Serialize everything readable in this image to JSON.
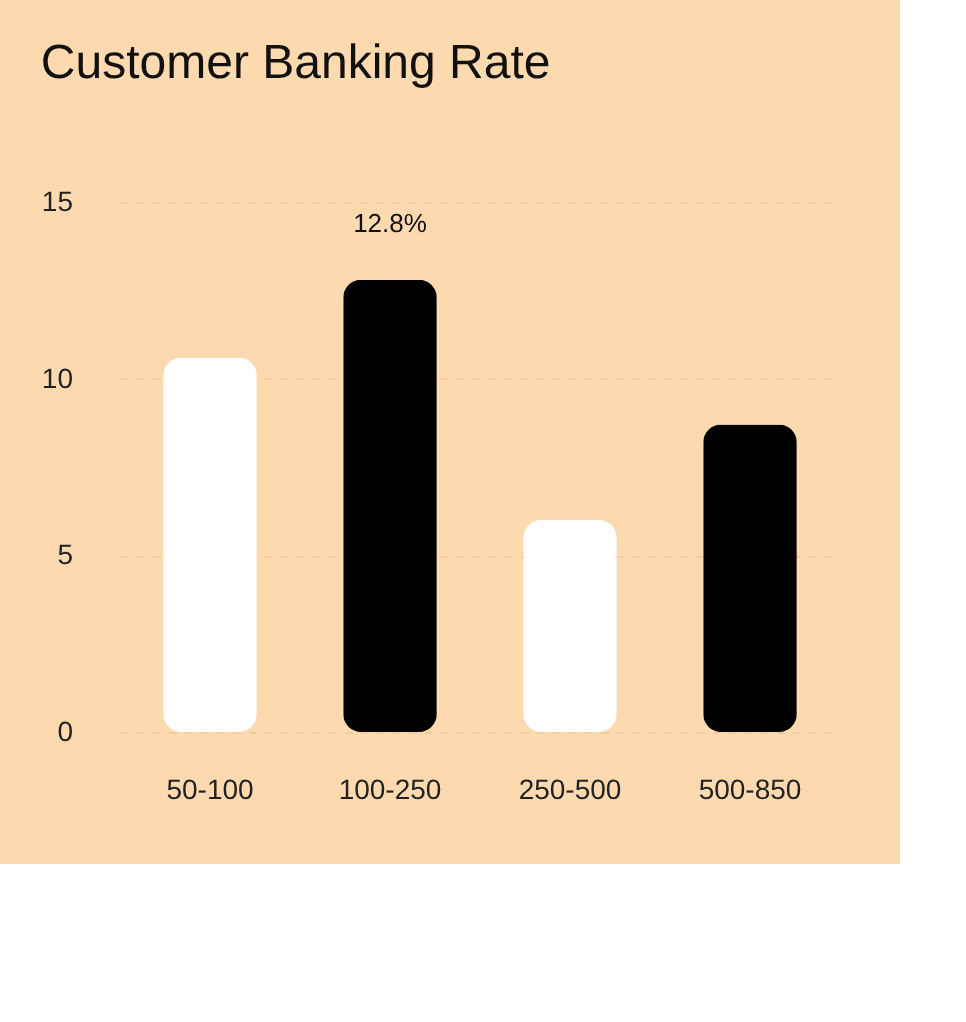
{
  "chart_data": {
    "type": "bar",
    "title": "Customer Banking Rate",
    "categories": [
      "50-100",
      "100-250",
      "250-500",
      "500-850"
    ],
    "values": [
      10.6,
      12.8,
      6.0,
      8.7
    ],
    "colors": [
      "#ffffff",
      "#000000",
      "#ffffff",
      "#000000"
    ],
    "value_labels": [
      null,
      "12.8%",
      null,
      null
    ],
    "ylim": [
      0,
      15
    ],
    "yticks": [
      0,
      5,
      10,
      15
    ],
    "grid": "y"
  }
}
